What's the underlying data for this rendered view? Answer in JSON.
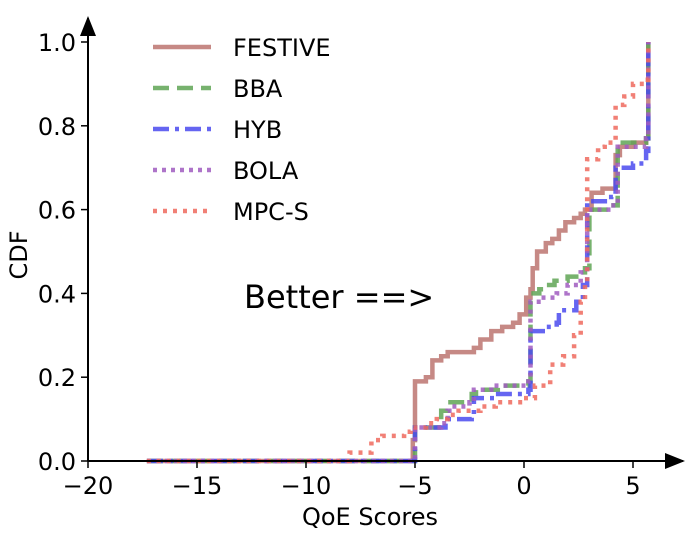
{
  "chart_data": {
    "type": "line",
    "title": "",
    "xlabel": "QoE Scores",
    "ylabel": "CDF",
    "xlim": [
      -20,
      7
    ],
    "ylim": [
      0,
      1.05
    ],
    "xticks": [
      -20,
      -15,
      -10,
      -5,
      0,
      5
    ],
    "xtick_labels": [
      "−20",
      "−15",
      "−10",
      "−5",
      "0",
      "5"
    ],
    "yticks": [
      0.0,
      0.2,
      0.4,
      0.6,
      0.8,
      1.0
    ],
    "ytick_labels": [
      "0.0",
      "0.2",
      "0.4",
      "0.6",
      "0.8",
      "1.0"
    ],
    "grid": false,
    "legend_position": "top-left",
    "annotation": "Better ==>",
    "series": [
      {
        "name": "FESTIVE",
        "color": "#bc7470",
        "dash": "solid",
        "x": [
          -17.3,
          -7.8,
          -5.1,
          -5.0,
          -4.5,
          -4.2,
          -3.8,
          -3.5,
          -3.0,
          -2.3,
          -2.0,
          -1.5,
          -1.0,
          -0.5,
          -0.2,
          0.1,
          0.3,
          0.4,
          0.6,
          1.0,
          1.3,
          1.6,
          1.9,
          2.3,
          2.6,
          2.8,
          3.1,
          3.6,
          4.2,
          4.4,
          5.0,
          5.6,
          5.7
        ],
        "y": [
          0.0,
          0.0,
          0.05,
          0.19,
          0.2,
          0.24,
          0.25,
          0.26,
          0.26,
          0.27,
          0.29,
          0.31,
          0.32,
          0.33,
          0.35,
          0.39,
          0.41,
          0.46,
          0.5,
          0.52,
          0.53,
          0.55,
          0.57,
          0.58,
          0.59,
          0.6,
          0.64,
          0.65,
          0.73,
          0.75,
          0.76,
          0.77,
          1.0
        ]
      },
      {
        "name": "BBA",
        "color": "#5fa455",
        "dash": "dashed",
        "x": [
          -17.3,
          -5.1,
          -5.0,
          -3.9,
          -3.8,
          -3.5,
          -3.3,
          -2.4,
          -2.2,
          -1.8,
          -1.2,
          -0.6,
          0.2,
          0.3,
          0.7,
          1.0,
          1.4,
          2.0,
          2.5,
          2.8,
          3.0,
          4.0,
          4.3,
          5.6,
          5.7
        ],
        "y": [
          0.0,
          0.0,
          0.08,
          0.09,
          0.12,
          0.14,
          0.14,
          0.16,
          0.17,
          0.17,
          0.18,
          0.18,
          0.19,
          0.4,
          0.41,
          0.42,
          0.43,
          0.44,
          0.45,
          0.46,
          0.6,
          0.61,
          0.76,
          0.77,
          1.0
        ]
      },
      {
        "name": "HYB",
        "color": "#4a4aee",
        "dash": "dashdot",
        "x": [
          -17.3,
          -5.1,
          -5.0,
          -3.6,
          -3.5,
          -2.4,
          -2.3,
          -1.3,
          -0.3,
          0.2,
          0.3,
          1.0,
          1.5,
          1.6,
          2.4,
          2.7,
          2.9,
          3.5,
          4.0,
          4.2,
          5.0,
          5.6,
          5.7
        ],
        "y": [
          0.0,
          0.0,
          0.08,
          0.09,
          0.1,
          0.11,
          0.15,
          0.16,
          0.16,
          0.17,
          0.31,
          0.32,
          0.33,
          0.36,
          0.38,
          0.42,
          0.62,
          0.62,
          0.63,
          0.7,
          0.71,
          0.74,
          1.0
        ]
      },
      {
        "name": "BOLA",
        "color": "#a05cc0",
        "dash": "dotted",
        "x": [
          -17.3,
          -5.1,
          -5.0,
          -3.8,
          -3.5,
          -3.3,
          -2.5,
          -2.3,
          -1.5,
          -0.7,
          0.2,
          0.3,
          0.8,
          1.5,
          2.0,
          2.6,
          2.9,
          4.0,
          4.3,
          5.6,
          5.7
        ],
        "y": [
          0.0,
          0.0,
          0.08,
          0.09,
          0.12,
          0.13,
          0.14,
          0.17,
          0.18,
          0.18,
          0.19,
          0.38,
          0.39,
          0.4,
          0.42,
          0.45,
          0.6,
          0.61,
          0.75,
          0.77,
          1.0
        ]
      },
      {
        "name": "MPC-S",
        "color": "#ef6a5e",
        "dash": "densely-dotted",
        "x": [
          -17.3,
          -8.3,
          -8.0,
          -7.0,
          -6.5,
          -5.5,
          -5.2,
          -4.5,
          -4.0,
          -3.5,
          -3.0,
          -2.5,
          -2.0,
          -1.3,
          -0.5,
          0.0,
          0.5,
          1.2,
          1.8,
          2.3,
          2.6,
          2.8,
          2.9,
          3.4,
          3.7,
          4.2,
          4.6,
          5.0,
          5.5,
          5.7
        ],
        "y": [
          0.0,
          0.0,
          0.02,
          0.05,
          0.06,
          0.07,
          0.08,
          0.09,
          0.1,
          0.11,
          0.12,
          0.12,
          0.13,
          0.14,
          0.14,
          0.15,
          0.18,
          0.23,
          0.25,
          0.3,
          0.38,
          0.42,
          0.72,
          0.75,
          0.76,
          0.85,
          0.87,
          0.9,
          0.91,
          1.0
        ]
      }
    ]
  }
}
